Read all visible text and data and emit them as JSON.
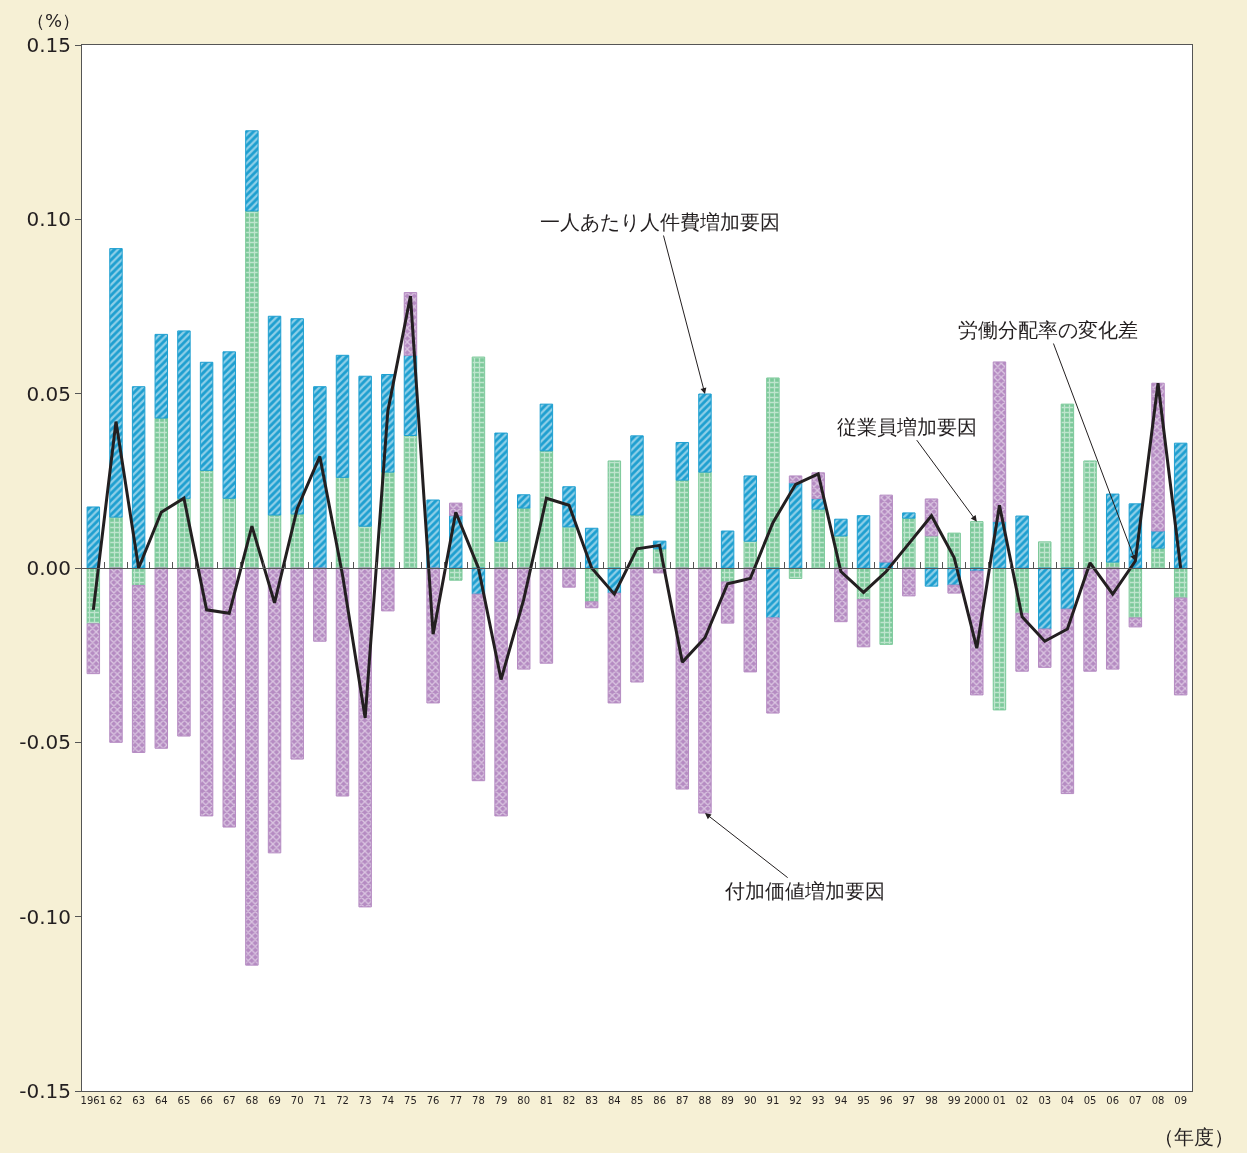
{
  "chart_data": {
    "type": "bar",
    "stacked": true,
    "categories": [
      "1961",
      "62",
      "63",
      "64",
      "65",
      "66",
      "67",
      "68",
      "69",
      "70",
      "71",
      "72",
      "73",
      "74",
      "75",
      "76",
      "77",
      "78",
      "79",
      "80",
      "81",
      "82",
      "83",
      "84",
      "85",
      "86",
      "87",
      "88",
      "89",
      "90",
      "91",
      "92",
      "93",
      "94",
      "95",
      "96",
      "97",
      "98",
      "99",
      "2000",
      "01",
      "02",
      "03",
      "04",
      "05",
      "06",
      "07",
      "08",
      "09"
    ],
    "series": [
      {
        "color": "#7cc99a",
        "values": [
          -0.016,
          0.0146,
          -0.005,
          0.043,
          0.02,
          0.028,
          0.02,
          0.1024,
          0.0152,
          0.0155,
          0,
          0.026,
          0.012,
          0.0275,
          0.038,
          0,
          -0.0035,
          0.0605,
          0.0077,
          0.0172,
          0.0336,
          0.0118,
          -0.0097,
          0.0307,
          0.0152,
          0.0055,
          0.0252,
          0.0275,
          -0.004,
          0.0077,
          0.0545,
          -0.003,
          0.0169,
          0.0092,
          -0.009,
          -0.0219,
          0.0143,
          0.0092,
          0.01,
          0.0133,
          -0.0407,
          -0.013,
          0.0075,
          0.047,
          0.0307,
          0.0017,
          -0.0143,
          0.0057,
          -0.0086
        ]
      },
      {
        "color": "#1e9fd0",
        "values": [
          0.0175,
          0.077,
          0.052,
          0.024,
          0.048,
          0.031,
          0.042,
          0.023,
          0.057,
          0.056,
          0.052,
          0.035,
          0.043,
          0.028,
          0.023,
          0.0195,
          0.015,
          -0.0075,
          0.031,
          0.0038,
          0.0134,
          0.0115,
          0.0114,
          -0.0072,
          0.0227,
          0.0022,
          0.0108,
          0.0224,
          0.0106,
          0.0187,
          -0.0143,
          0.0244,
          0.003,
          0.0048,
          0.015,
          0.0017,
          0.0015,
          -0.0052,
          -0.0049,
          -0.0009,
          0.0133,
          0.0149,
          -0.0175,
          -0.0118,
          null,
          0.0195,
          0.0184,
          0.0049,
          0.0358
        ]
      },
      {
        "color": "#b58bc2",
        "values": [
          -0.0143,
          -0.05,
          -0.0479,
          -0.0517,
          -0.0482,
          -0.0711,
          -0.0743,
          -0.1139,
          -0.0817,
          -0.0548,
          -0.021,
          -0.0654,
          -0.0972,
          -0.0123,
          0.018,
          -0.0387,
          0.0036,
          -0.0535,
          -0.0711,
          -0.029,
          -0.0273,
          -0.0055,
          -0.0017,
          -0.0315,
          -0.0327,
          -0.0014,
          -0.0634,
          -0.0703,
          -0.0118,
          -0.0298,
          -0.0273,
          0.002,
          0.0074,
          -0.0154,
          -0.0136,
          0.0192,
          -0.008,
          0.0106,
          -0.0023,
          -0.0355,
          0.0458,
          -0.0166,
          -0.011,
          -0.0529,
          -0.0296,
          -0.029,
          -0.0026,
          0.0424,
          -0.0278
        ]
      },
      {
        "type": "line",
        "color": "#231f20",
        "values": [
          -0.012,
          0.042,
          0.0,
          0.016,
          0.02,
          -0.012,
          -0.013,
          0.012,
          -0.01,
          0.017,
          0.032,
          -0.002,
          -0.043,
          0.045,
          0.078,
          -0.019,
          0.016,
          0.0,
          -0.032,
          -0.009,
          0.02,
          0.018,
          0.0,
          -0.0075,
          0.0055,
          0.0065,
          -0.027,
          -0.02,
          -0.0045,
          -0.003,
          0.013,
          0.024,
          0.027,
          -0.001,
          -0.007,
          -0.001,
          0.007,
          0.015,
          0.003,
          -0.023,
          0.018,
          -0.014,
          -0.021,
          -0.0175,
          0.0015,
          -0.0075,
          0.002,
          0.053,
          0.0
        ]
      }
    ],
    "ylim": [
      -0.15,
      0.15
    ],
    "yticks": [
      {
        "value": -0.15,
        "label": "-0.15"
      },
      {
        "value": -0.1,
        "label": "-0.10"
      },
      {
        "value": -0.05,
        "label": "-0.05"
      },
      {
        "value": 0,
        "label": "0.00"
      },
      {
        "value": 0.05,
        "label": "0.05"
      },
      {
        "value": 0.1,
        "label": "0.10"
      },
      {
        "value": 0.15,
        "label": "0.15"
      }
    ],
    "ylabel": "（%）",
    "xlabel": "（年度）",
    "legend": false,
    "annotations": [
      {
        "text": "一人あたり人件費増加要因",
        "x": "88",
        "y": 0.0499
      },
      {
        "text": "労働分配率の変化差",
        "x": "07",
        "y": 0.002
      },
      {
        "text": "従業員増加要因",
        "x": "2000",
        "y": 0.0133
      },
      {
        "text": "付加価値増加要因",
        "x": "88",
        "y": -0.0703
      }
    ]
  }
}
